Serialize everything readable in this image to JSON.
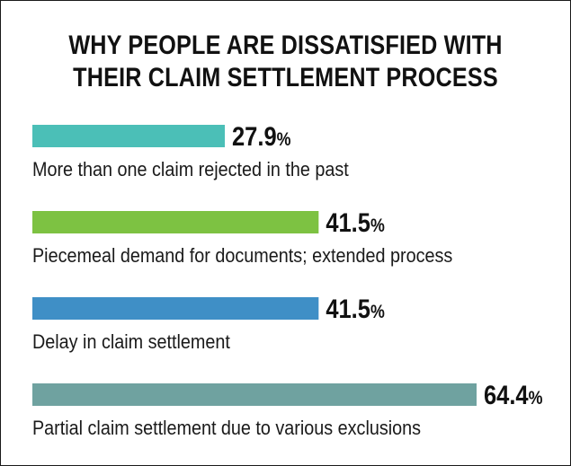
{
  "title_lines": [
    "WHY PEOPLE ARE DISSATISFIED WITH",
    "THEIR CLAIM SETTLEMENT PROCESS"
  ],
  "chart_data": {
    "type": "bar",
    "orientation": "horizontal",
    "title": "WHY PEOPLE ARE DISSATISFIED WITH THEIR CLAIM SETTLEMENT PROCESS",
    "categories": [
      "More than one claim rejected in the past",
      "Piecemeal demand for documents; extended process",
      "Delay in claim settlement",
      "Partial claim settlement due to various exclusions"
    ],
    "values": [
      27.9,
      41.5,
      41.5,
      64.4
    ],
    "value_labels": [
      "27.9",
      "41.5",
      "41.5",
      "64.4"
    ],
    "unit": "%",
    "colors": [
      "#4bbfb7",
      "#7dc242",
      "#3f8fc6",
      "#6fa2a0"
    ],
    "xlim": [
      0,
      64.4
    ],
    "grid": false,
    "legend": "none"
  }
}
